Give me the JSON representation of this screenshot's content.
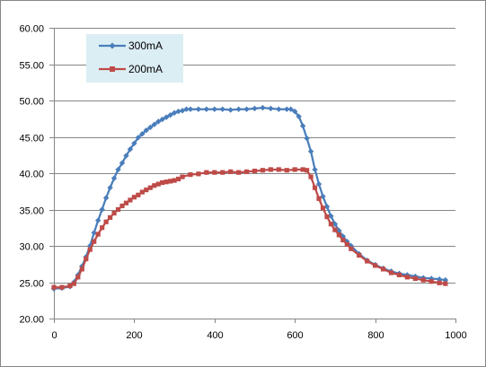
{
  "chart_data": {
    "type": "line",
    "title": "",
    "xlabel": "",
    "ylabel": "",
    "xlim": [
      0,
      1000
    ],
    "ylim": [
      20,
      60
    ],
    "x_ticks": [
      0,
      200,
      400,
      600,
      800,
      1000
    ],
    "x_tick_labels": [
      "0",
      "200",
      "400",
      "600",
      "800",
      "1000"
    ],
    "y_ticks": [
      20,
      25,
      30,
      35,
      40,
      45,
      50,
      55,
      60
    ],
    "y_tick_labels": [
      "20.00",
      "25.00",
      "30.00",
      "35.00",
      "40.00",
      "45.00",
      "50.00",
      "55.00",
      "60.00"
    ],
    "grid": "horizontal",
    "legend_position": "top-left",
    "series": [
      {
        "name": "300mA",
        "color": "#4a7ebb",
        "marker": "diamond",
        "points": [
          [
            0,
            24.1
          ],
          [
            20,
            24.2
          ],
          [
            40,
            24.4
          ],
          [
            50,
            25.0
          ],
          [
            60,
            26.0
          ],
          [
            70,
            27.2
          ],
          [
            80,
            28.5
          ],
          [
            90,
            30.0
          ],
          [
            100,
            31.8
          ],
          [
            110,
            33.5
          ],
          [
            120,
            35.0
          ],
          [
            130,
            36.6
          ],
          [
            140,
            38.0
          ],
          [
            150,
            39.3
          ],
          [
            160,
            40.5
          ],
          [
            170,
            41.4
          ],
          [
            180,
            42.4
          ],
          [
            190,
            43.3
          ],
          [
            200,
            44.1
          ],
          [
            210,
            44.9
          ],
          [
            220,
            45.4
          ],
          [
            230,
            45.9
          ],
          [
            240,
            46.3
          ],
          [
            250,
            46.7
          ],
          [
            260,
            47.1
          ],
          [
            270,
            47.4
          ],
          [
            280,
            47.7
          ],
          [
            290,
            48.0
          ],
          [
            300,
            48.3
          ],
          [
            310,
            48.5
          ],
          [
            320,
            48.6
          ],
          [
            330,
            48.8
          ],
          [
            340,
            48.8
          ],
          [
            360,
            48.8
          ],
          [
            380,
            48.8
          ],
          [
            400,
            48.8
          ],
          [
            420,
            48.8
          ],
          [
            440,
            48.7
          ],
          [
            460,
            48.8
          ],
          [
            480,
            48.8
          ],
          [
            500,
            48.9
          ],
          [
            520,
            49.0
          ],
          [
            540,
            48.9
          ],
          [
            560,
            48.8
          ],
          [
            580,
            48.8
          ],
          [
            590,
            48.8
          ],
          [
            600,
            48.5
          ],
          [
            610,
            47.8
          ],
          [
            620,
            46.5
          ],
          [
            630,
            44.8
          ],
          [
            640,
            43.0
          ],
          [
            650,
            40.5
          ],
          [
            660,
            38.5
          ],
          [
            670,
            36.8
          ],
          [
            680,
            35.4
          ],
          [
            690,
            34.1
          ],
          [
            700,
            33.0
          ],
          [
            710,
            32.1
          ],
          [
            720,
            31.3
          ],
          [
            730,
            30.6
          ],
          [
            740,
            30.0
          ],
          [
            760,
            28.9
          ],
          [
            780,
            28.0
          ],
          [
            800,
            27.4
          ],
          [
            820,
            26.9
          ],
          [
            840,
            26.5
          ],
          [
            860,
            26.2
          ],
          [
            880,
            26.0
          ],
          [
            900,
            25.8
          ],
          [
            920,
            25.6
          ],
          [
            940,
            25.5
          ],
          [
            960,
            25.4
          ],
          [
            975,
            25.3
          ]
        ]
      },
      {
        "name": "200mA",
        "color": "#be4b48",
        "marker": "square",
        "points": [
          [
            0,
            24.3
          ],
          [
            20,
            24.3
          ],
          [
            40,
            24.5
          ],
          [
            50,
            24.8
          ],
          [
            60,
            25.7
          ],
          [
            70,
            26.8
          ],
          [
            80,
            28.2
          ],
          [
            90,
            29.5
          ],
          [
            100,
            30.6
          ],
          [
            110,
            31.6
          ],
          [
            120,
            32.5
          ],
          [
            130,
            33.3
          ],
          [
            140,
            33.9
          ],
          [
            150,
            34.5
          ],
          [
            160,
            35.0
          ],
          [
            170,
            35.5
          ],
          [
            180,
            35.9
          ],
          [
            190,
            36.3
          ],
          [
            200,
            36.7
          ],
          [
            210,
            37.0
          ],
          [
            220,
            37.4
          ],
          [
            230,
            37.7
          ],
          [
            240,
            38.0
          ],
          [
            250,
            38.3
          ],
          [
            260,
            38.5
          ],
          [
            270,
            38.7
          ],
          [
            280,
            38.8
          ],
          [
            290,
            38.9
          ],
          [
            300,
            39.0
          ],
          [
            310,
            39.2
          ],
          [
            320,
            39.5
          ],
          [
            340,
            39.8
          ],
          [
            360,
            39.9
          ],
          [
            380,
            40.1
          ],
          [
            400,
            40.1
          ],
          [
            420,
            40.1
          ],
          [
            440,
            40.2
          ],
          [
            460,
            40.1
          ],
          [
            480,
            40.2
          ],
          [
            500,
            40.3
          ],
          [
            520,
            40.4
          ],
          [
            540,
            40.5
          ],
          [
            560,
            40.5
          ],
          [
            580,
            40.4
          ],
          [
            600,
            40.5
          ],
          [
            620,
            40.5
          ],
          [
            630,
            40.4
          ],
          [
            640,
            39.5
          ],
          [
            650,
            38.0
          ],
          [
            660,
            36.5
          ],
          [
            670,
            35.2
          ],
          [
            680,
            34.0
          ],
          [
            690,
            33.0
          ],
          [
            700,
            32.2
          ],
          [
            710,
            31.5
          ],
          [
            720,
            30.8
          ],
          [
            730,
            30.2
          ],
          [
            740,
            29.6
          ],
          [
            760,
            28.7
          ],
          [
            780,
            27.9
          ],
          [
            800,
            27.3
          ],
          [
            820,
            26.8
          ],
          [
            840,
            26.3
          ],
          [
            860,
            26.0
          ],
          [
            880,
            25.7
          ],
          [
            900,
            25.5
          ],
          [
            920,
            25.3
          ],
          [
            940,
            25.1
          ],
          [
            960,
            24.9
          ],
          [
            975,
            24.8
          ]
        ]
      }
    ]
  }
}
